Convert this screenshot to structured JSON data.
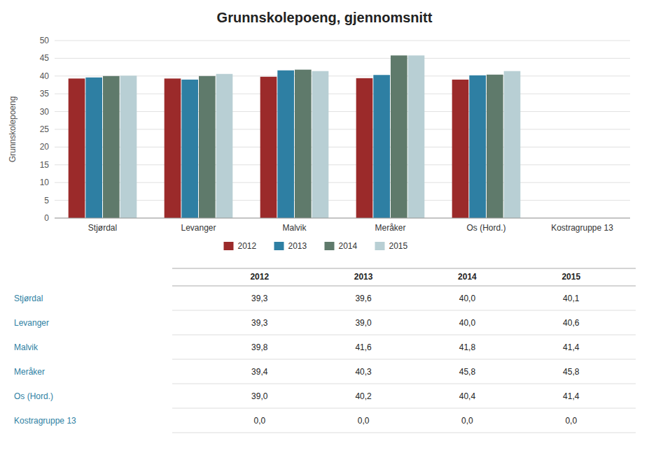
{
  "chart_data": {
    "type": "bar",
    "title": "Grunnskolepoeng, gjennomsnitt",
    "y_label": "Grunnskolepoeng",
    "categories": [
      "Stjørdal",
      "Levanger",
      "Malvik",
      "Meråker",
      "Os (Hord.)",
      "Kostragruppe 13"
    ],
    "series": [
      {
        "name": "2012",
        "color": "#9b2a2a",
        "values": [
          39.3,
          39.3,
          39.8,
          39.4,
          39.0,
          0.0
        ],
        "value_labels": [
          "39,3",
          "39,3",
          "39,8",
          "39,4",
          "39,0",
          "0,0"
        ]
      },
      {
        "name": "2013",
        "color": "#2e7fa3",
        "values": [
          39.6,
          39.0,
          41.6,
          40.3,
          40.2,
          0.0
        ],
        "value_labels": [
          "39,6",
          "39,0",
          "41,6",
          "40,3",
          "40,2",
          "0,0"
        ]
      },
      {
        "name": "2014",
        "color": "#5f7a6b",
        "values": [
          40.0,
          40.0,
          41.8,
          45.8,
          40.4,
          0.0
        ],
        "value_labels": [
          "40,0",
          "40,0",
          "41,8",
          "45,8",
          "40,4",
          "0,0"
        ]
      },
      {
        "name": "2015",
        "color": "#b8cfd4",
        "values": [
          40.1,
          40.6,
          41.4,
          45.8,
          41.4,
          0.0
        ],
        "value_labels": [
          "40,1",
          "40,6",
          "41,4",
          "45,8",
          "41,4",
          "0,0"
        ]
      }
    ],
    "ylim": [
      0,
      50
    ],
    "yticks": [
      0,
      5,
      10,
      15,
      20,
      25,
      30,
      35,
      40,
      45,
      50
    ],
    "grid": true,
    "legend": "bottom"
  }
}
